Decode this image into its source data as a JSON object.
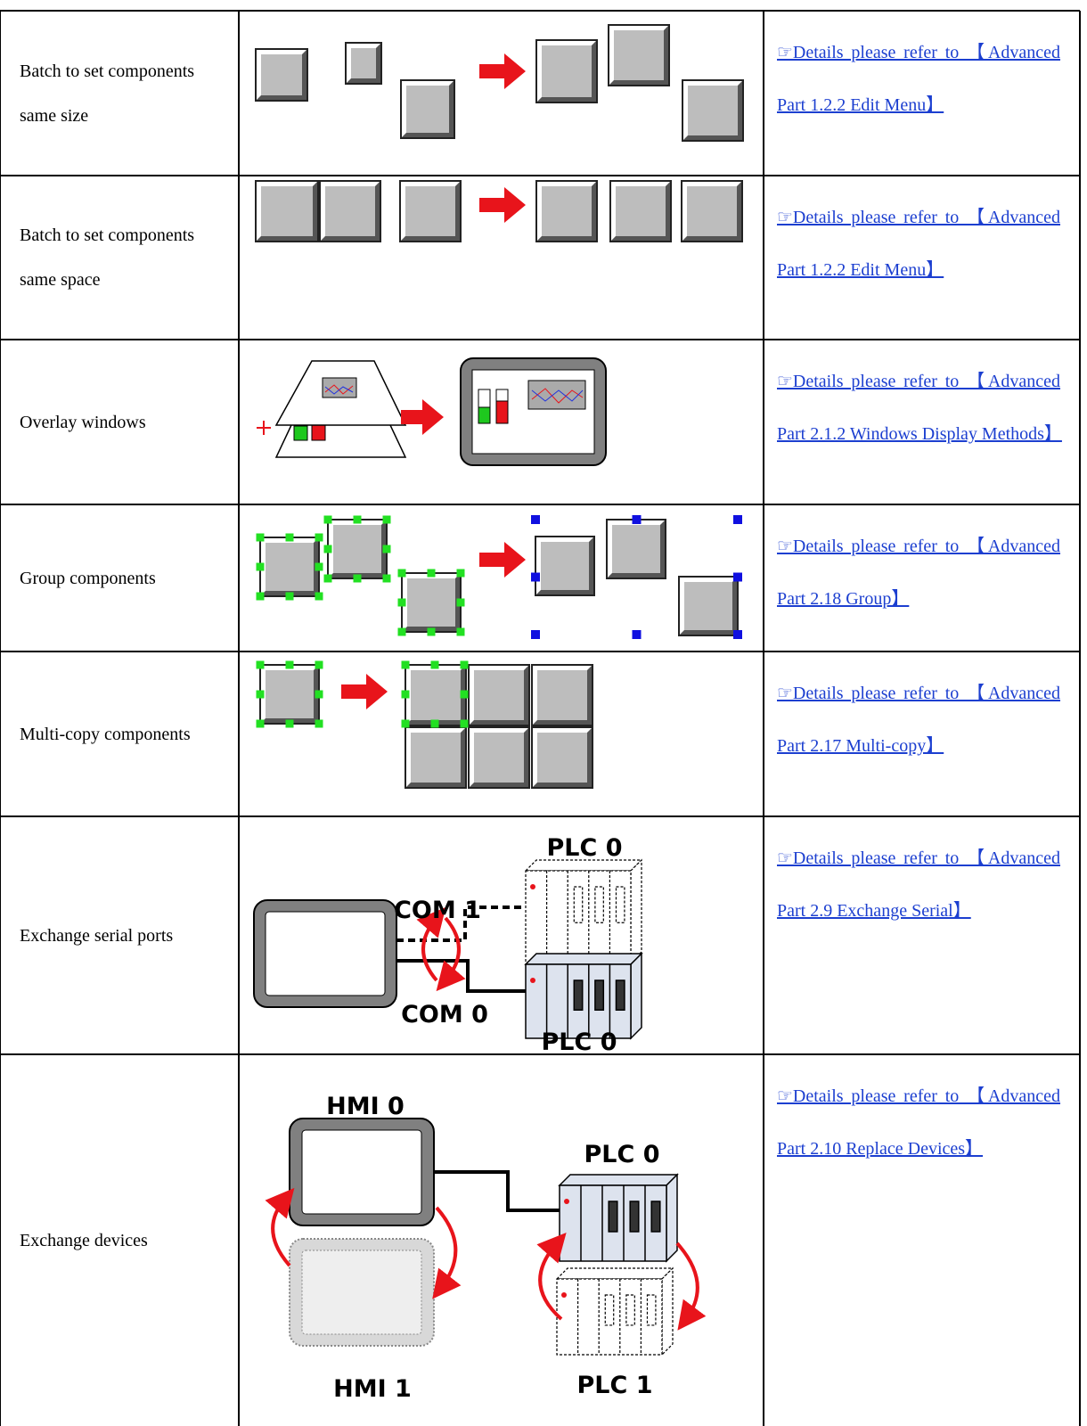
{
  "table": {
    "rows": [
      {
        "feature": "Batch to set components same size",
        "link": "☞Details please refer to 【Advanced Part 1.2.2 Edit Menu】"
      },
      {
        "feature": "Batch to set components same space",
        "link": "☞Details please refer to 【Advanced Part 1.2.2 Edit Menu】"
      },
      {
        "feature": "Overlay windows",
        "link": "☞Details please refer to 【Advanced Part 2.1.2 Windows Display Methods】"
      },
      {
        "feature": "Group components",
        "link": "☞Details please refer to 【Advanced Part 2.18 Group】"
      },
      {
        "feature": "Multi-copy components",
        "link": "☞Details please refer to 【Advanced Part 2.17 Multi-copy】"
      },
      {
        "feature": "Exchange serial ports",
        "link": "☞Details please refer to 【Advanced Part 2.9 Exchange Serial】",
        "labels": [
          "PLC 0",
          "COM 1",
          "COM 0",
          "PLC 0"
        ]
      },
      {
        "feature": "Exchange devices",
        "link": "☞Details please refer to 【Advanced Part 2.10 Replace Devices】",
        "labels": [
          "HMI 0",
          "PLC 0",
          "HMI 1",
          "PLC 1"
        ]
      }
    ]
  }
}
